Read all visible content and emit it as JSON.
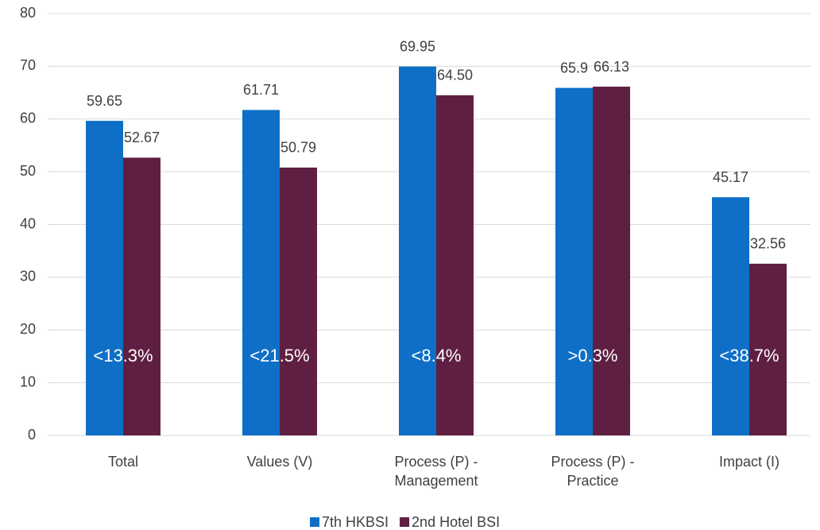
{
  "chart_data": {
    "type": "bar",
    "categories": [
      "Total",
      "Values (V)",
      "Process (P)  -\nManagement",
      "Process (P) -\nPractice",
      "Impact (I)"
    ],
    "series": [
      {
        "name": "7th HKBSI",
        "color": "#0f6fc6",
        "values": [
          59.65,
          61.71,
          69.95,
          65.9,
          45.17
        ],
        "value_labels": [
          "59.65",
          "61.71",
          "69.95",
          "65.9",
          "45.17"
        ]
      },
      {
        "name": "2nd Hotel BSI",
        "color": "#5f1f42",
        "values": [
          52.67,
          50.79,
          64.5,
          66.13,
          32.56
        ],
        "value_labels": [
          "52.67",
          "50.79",
          "64.50",
          "66.13",
          "32.56"
        ]
      }
    ],
    "annotations": [
      "<13.3%",
      "<21.5%",
      "<8.4%",
      ">0.3%",
      "<38.7%"
    ],
    "ylim": [
      0,
      80
    ],
    "yticks": [
      0,
      10,
      20,
      30,
      40,
      50,
      60,
      70,
      80
    ],
    "grid": true,
    "legend": "bottom"
  }
}
